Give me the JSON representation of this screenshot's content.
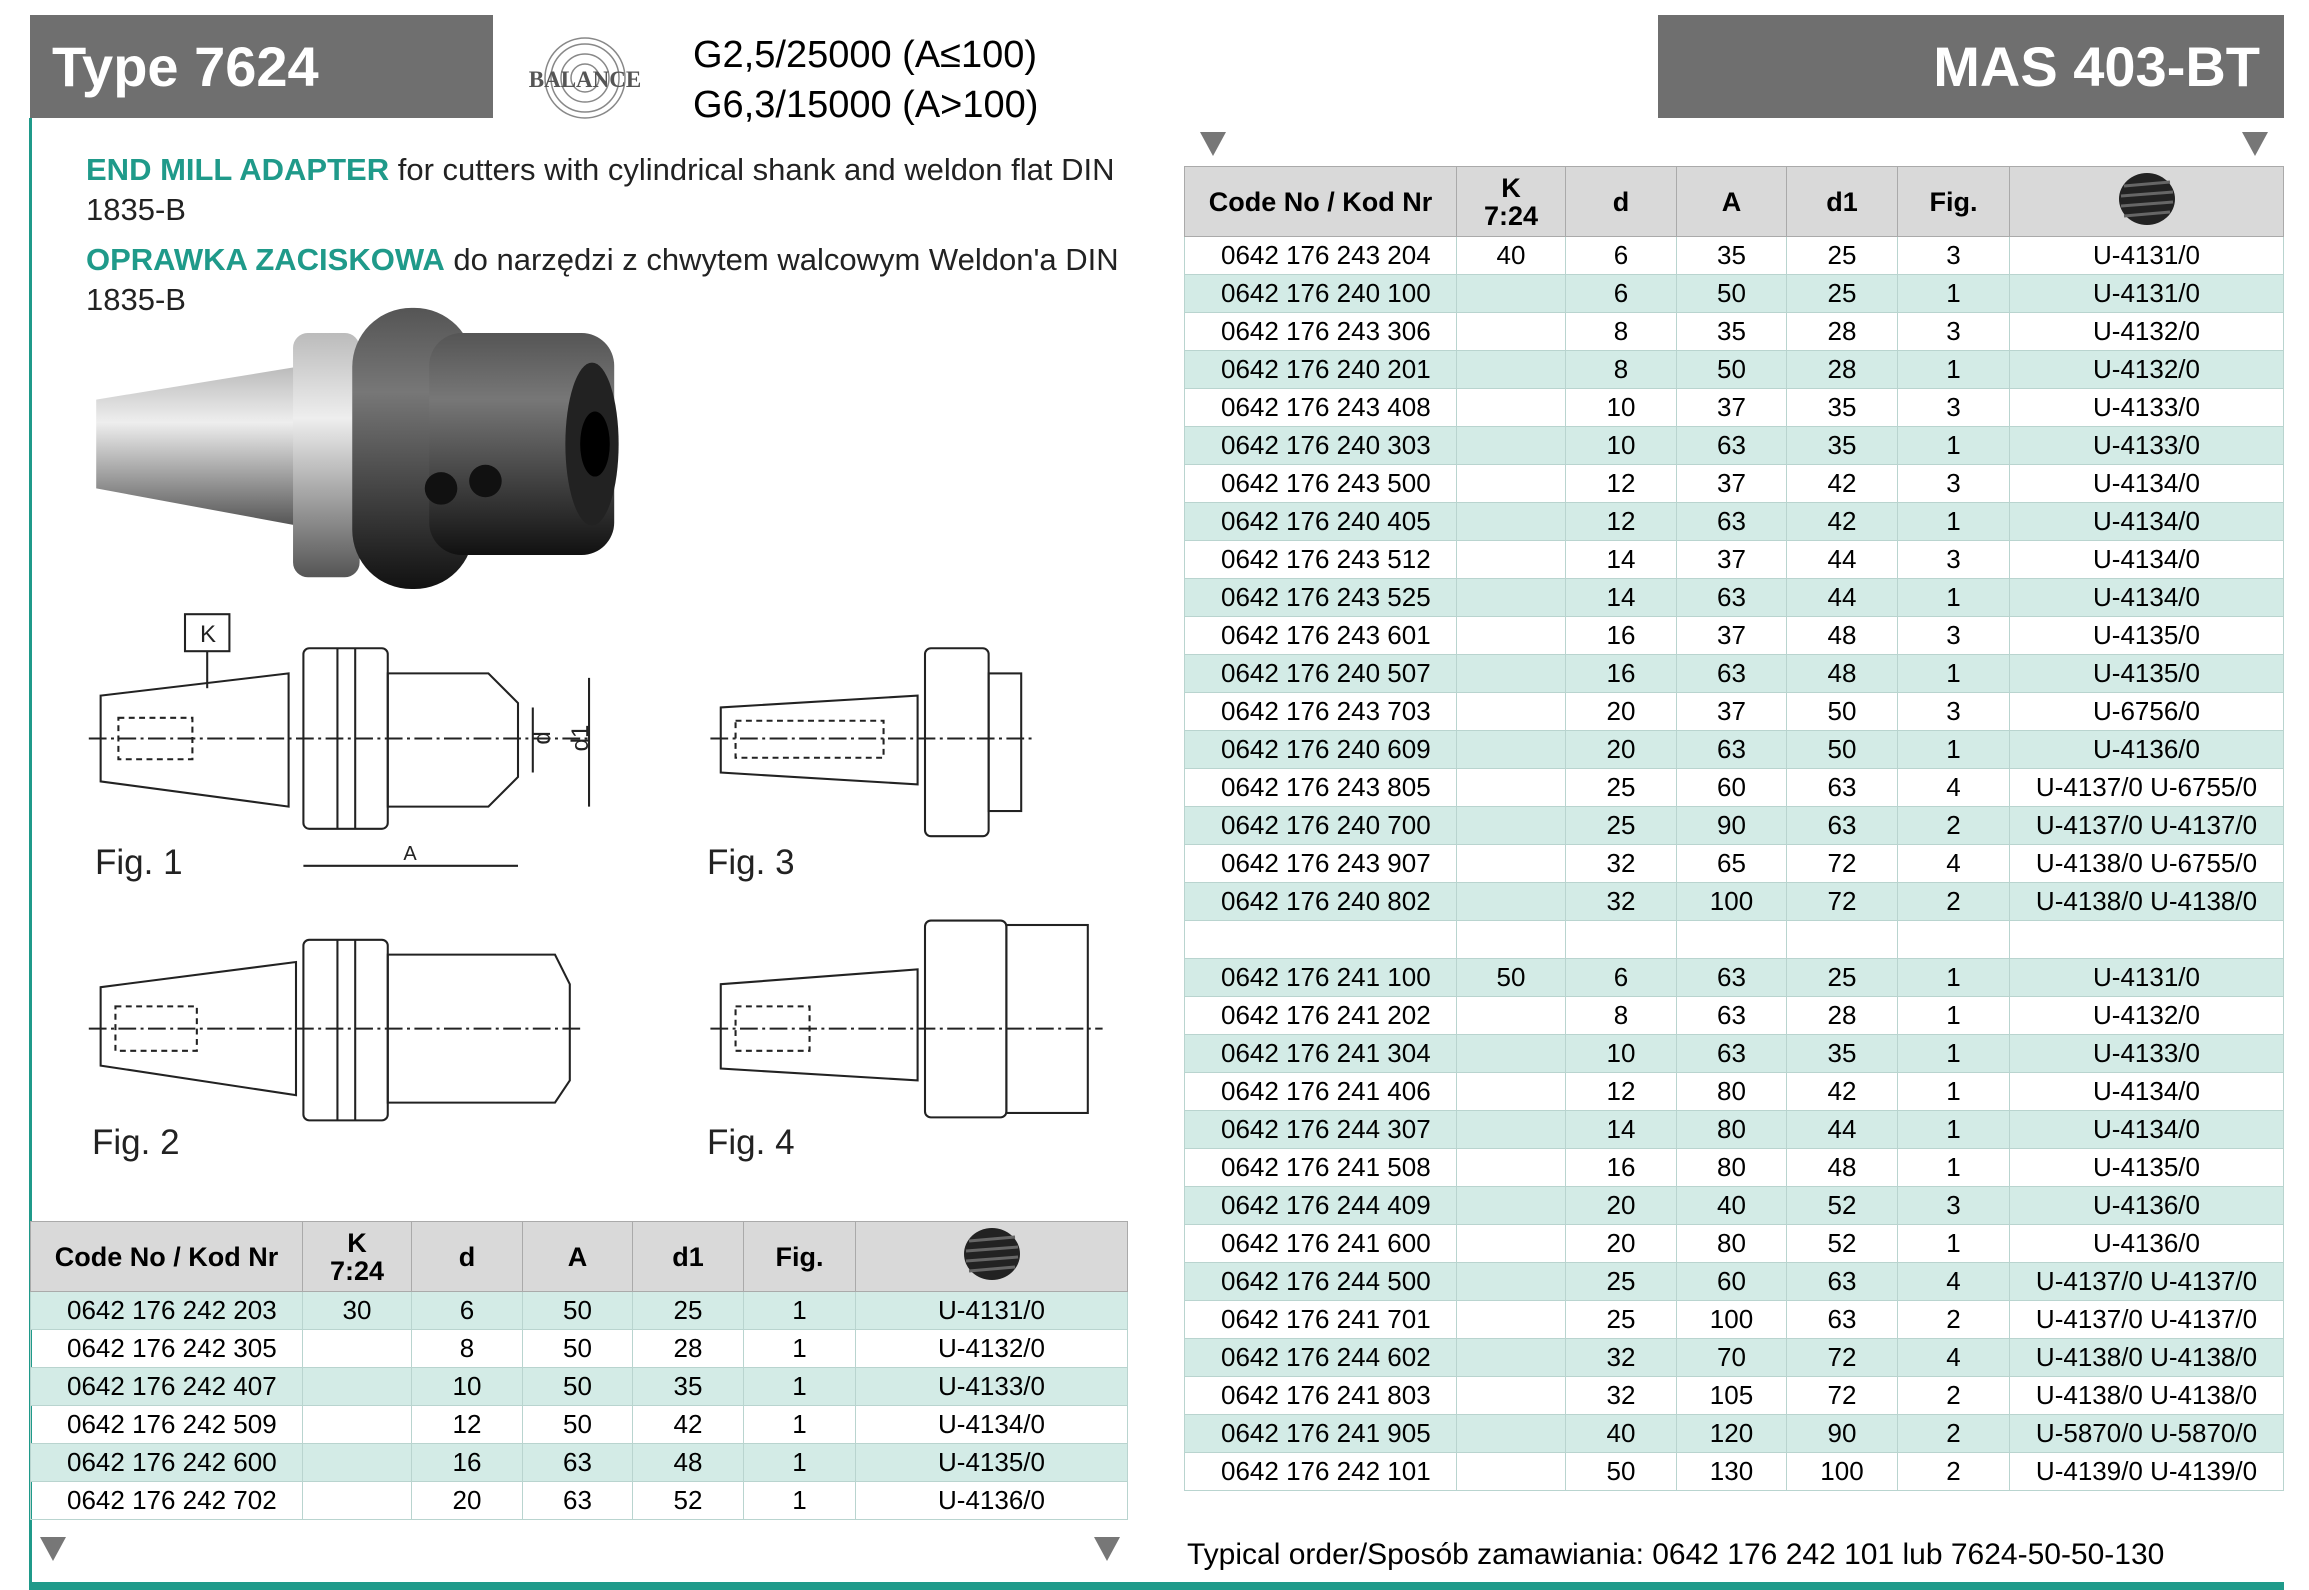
{
  "header": {
    "title": "Type 7624",
    "logo": "BALANCE",
    "spec_lines": [
      "G2,5/25000 (A≤100)",
      "G6,3/15000 (A>100)"
    ],
    "series": "MAS 403-BT"
  },
  "description": [
    {
      "bold": "END MILL ADAPTER",
      "text": " for cutters with cylindrical shank and weldon flat DIN 1835-B"
    },
    {
      "bold": "OPRAWKA ZACISKOWA",
      "text": " do narzędzi z chwytem walcowym Weldon'a DIN 1835-B"
    }
  ],
  "figures": {
    "labels": [
      "Fig. 1",
      "Fig. 2",
      "Fig. 3",
      "Fig. 4"
    ],
    "dims": {
      "k": "K",
      "a": "A",
      "d": "d",
      "d1": "d1"
    }
  },
  "table_left": {
    "columns": [
      "Code No / Kod Nr",
      [
        "K",
        "7:24"
      ],
      "d",
      "A",
      "d1",
      "Fig."
    ],
    "rows": [
      [
        "0642 176 242 203",
        30,
        6,
        50,
        25,
        1,
        "U-4131/0"
      ],
      [
        "0642 176 242 305",
        null,
        8,
        50,
        28,
        1,
        "U-4132/0"
      ],
      [
        "0642 176 242 407",
        null,
        10,
        50,
        35,
        1,
        "U-4133/0"
      ],
      [
        "0642 176 242 509",
        null,
        12,
        50,
        42,
        1,
        "U-4134/0"
      ],
      [
        "0642 176 242 600",
        null,
        16,
        63,
        48,
        1,
        "U-4135/0"
      ],
      [
        "0642 176 242 702",
        null,
        20,
        63,
        52,
        1,
        "U-4136/0"
      ]
    ]
  },
  "table_right": {
    "columns": [
      "Code No / Kod Nr",
      [
        "K",
        "7:24"
      ],
      "d",
      "A",
      "d1",
      "Fig."
    ],
    "groups": [
      {
        "rows": [
          [
            "0642 176 243 204",
            40,
            6,
            35,
            25,
            3,
            "U-4131/0"
          ],
          [
            "0642 176 240 100",
            null,
            6,
            50,
            25,
            1,
            "U-4131/0"
          ],
          [
            "0642 176 243 306",
            null,
            8,
            35,
            28,
            3,
            "U-4132/0"
          ],
          [
            "0642 176 240 201",
            null,
            8,
            50,
            28,
            1,
            "U-4132/0"
          ],
          [
            "0642 176 243 408",
            null,
            10,
            37,
            35,
            3,
            "U-4133/0"
          ],
          [
            "0642 176 240 303",
            null,
            10,
            63,
            35,
            1,
            "U-4133/0"
          ],
          [
            "0642 176 243 500",
            null,
            12,
            37,
            42,
            3,
            "U-4134/0"
          ],
          [
            "0642 176 240 405",
            null,
            12,
            63,
            42,
            1,
            "U-4134/0"
          ],
          [
            "0642 176 243 512",
            null,
            14,
            37,
            44,
            3,
            "U-4134/0"
          ],
          [
            "0642 176 243 525",
            null,
            14,
            63,
            44,
            1,
            "U-4134/0"
          ],
          [
            "0642 176 243 601",
            null,
            16,
            37,
            48,
            3,
            "U-4135/0"
          ],
          [
            "0642 176 240 507",
            null,
            16,
            63,
            48,
            1,
            "U-4135/0"
          ],
          [
            "0642 176 243 703",
            null,
            20,
            37,
            50,
            3,
            "U-6756/0"
          ],
          [
            "0642 176 240 609",
            null,
            20,
            63,
            50,
            1,
            "U-4136/0"
          ],
          [
            "0642 176 243 805",
            null,
            25,
            60,
            63,
            4,
            "U-4137/0 U-6755/0"
          ],
          [
            "0642 176 240 700",
            null,
            25,
            90,
            63,
            2,
            "U-4137/0 U-4137/0"
          ],
          [
            "0642 176 243 907",
            null,
            32,
            65,
            72,
            4,
            "U-4138/0 U-6755/0"
          ],
          [
            "0642 176 240 802",
            null,
            32,
            100,
            72,
            2,
            "U-4138/0 U-4138/0"
          ]
        ]
      },
      {
        "rows": [
          [
            "0642 176 241 100",
            50,
            6,
            63,
            25,
            1,
            "U-4131/0"
          ],
          [
            "0642 176 241 202",
            null,
            8,
            63,
            28,
            1,
            "U-4132/0"
          ],
          [
            "0642 176 241 304",
            null,
            10,
            63,
            35,
            1,
            "U-4133/0"
          ],
          [
            "0642 176 241 406",
            null,
            12,
            80,
            42,
            1,
            "U-4134/0"
          ],
          [
            "0642 176 244 307",
            null,
            14,
            80,
            44,
            1,
            "U-4134/0"
          ],
          [
            "0642 176 241 508",
            null,
            16,
            80,
            48,
            1,
            "U-4135/0"
          ],
          [
            "0642 176 244 409",
            null,
            20,
            40,
            52,
            3,
            "U-4136/0"
          ],
          [
            "0642 176 241 600",
            null,
            20,
            80,
            52,
            1,
            "U-4136/0"
          ],
          [
            "0642 176 244 500",
            null,
            25,
            60,
            63,
            4,
            "U-4137/0 U-4137/0"
          ],
          [
            "0642 176 241 701",
            null,
            25,
            100,
            63,
            2,
            "U-4137/0 U-4137/0"
          ],
          [
            "0642 176 244 602",
            null,
            32,
            70,
            72,
            4,
            "U-4138/0 U-4138/0"
          ],
          [
            "0642 176 241 803",
            null,
            32,
            105,
            72,
            2,
            "U-4138/0 U-4138/0"
          ],
          [
            "0642 176 241 905",
            null,
            40,
            120,
            90,
            2,
            "U-5870/0 U-5870/0"
          ],
          [
            "0642 176 242 101",
            null,
            50,
            130,
            100,
            2,
            "U-4139/0 U-4139/0"
          ]
        ]
      }
    ]
  },
  "footer": {
    "order": "Typical order/Sposób zamawiania: 0642 176 242 101 lub 7624-50-50-130"
  }
}
